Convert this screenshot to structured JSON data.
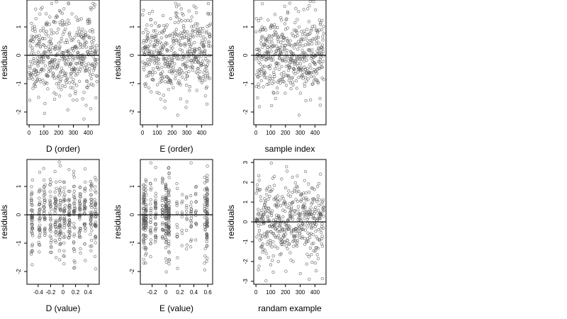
{
  "figure": {
    "background": "#ffffff",
    "point_color": "#555555",
    "zero_line_color": "#000000"
  },
  "chart_data": [
    {
      "type": "scatter",
      "xlabel": "D (order)",
      "ylabel": "residuals",
      "xlim": [
        -15,
        475
      ],
      "ylim": [
        -2.45,
        1.95
      ],
      "xticks": [
        0,
        100,
        200,
        300,
        400
      ],
      "yticks": [
        -2,
        -1,
        0,
        1
      ],
      "hline": 0,
      "x_pattern": "index",
      "x_range": [
        1,
        460
      ],
      "n": 460,
      "y_sd": 0.72,
      "seed": 11
    },
    {
      "type": "scatter",
      "xlabel": "E (order)",
      "ylabel": "residuals",
      "xlim": [
        -15,
        475
      ],
      "ylim": [
        -2.45,
        1.95
      ],
      "xticks": [
        0,
        100,
        200,
        300,
        400
      ],
      "yticks": [
        -2,
        -1,
        0,
        1
      ],
      "hline": 0,
      "x_pattern": "index",
      "x_range": [
        1,
        460
      ],
      "n": 460,
      "y_sd": 0.72,
      "seed": 23
    },
    {
      "type": "scatter",
      "xlabel": "sample index",
      "ylabel": "residuals",
      "xlim": [
        -15,
        475
      ],
      "ylim": [
        -2.45,
        1.95
      ],
      "xticks": [
        0,
        100,
        200,
        300,
        400
      ],
      "yticks": [
        -2,
        -1,
        0,
        1
      ],
      "hline": 0,
      "x_pattern": "index",
      "x_range": [
        1,
        460
      ],
      "n": 460,
      "y_sd": 0.72,
      "seed": 37
    },
    {
      "type": "scatter",
      "xlabel": "D (value)",
      "ylabel": "residuals",
      "xlim": [
        -0.58,
        0.58
      ],
      "ylim": [
        -2.45,
        1.95
      ],
      "xticks": [
        -0.4,
        -0.2,
        0.0,
        0.2,
        0.4
      ],
      "yticks": [
        -2,
        -1,
        0,
        1
      ],
      "hline": 0,
      "x_pattern": "columns",
      "x_columns": [
        -0.5,
        -0.38,
        -0.3,
        -0.2,
        -0.12,
        -0.05,
        0.02,
        0.1,
        0.18,
        0.27,
        0.35,
        0.45,
        0.52
      ],
      "x_jitter": 0.012,
      "n": 460,
      "y_sd": 0.72,
      "seed": 51
    },
    {
      "type": "scatter",
      "xlabel": "E (value)",
      "ylabel": "residuals",
      "xlim": [
        -0.37,
        0.67
      ],
      "ylim": [
        -2.45,
        1.95
      ],
      "xticks": [
        -0.2,
        0.0,
        0.2,
        0.4,
        0.6
      ],
      "yticks": [
        -2,
        -1,
        0,
        1
      ],
      "hline": 0,
      "x_pattern": "columns",
      "x_columns": [
        -0.32,
        -0.29,
        -0.22,
        -0.15,
        -0.05,
        0.0,
        0.04,
        0.16,
        0.23,
        0.3,
        0.36,
        0.43,
        0.56,
        0.59
      ],
      "x_column_weights": [
        6,
        4,
        3,
        3,
        3,
        5,
        4,
        1,
        1,
        1,
        1,
        1,
        2,
        4
      ],
      "x_jitter": 0.006,
      "n": 460,
      "y_sd": 0.72,
      "seed": 67
    },
    {
      "type": "scatter",
      "xlabel": "randam example",
      "ylabel": "residuals",
      "xlim": [
        -15,
        475
      ],
      "ylim": [
        -3.15,
        3.15
      ],
      "xticks": [
        0,
        100,
        200,
        300,
        400
      ],
      "yticks": [
        -3,
        -2,
        -1,
        0,
        1,
        2,
        3
      ],
      "hline": 0,
      "x_pattern": "index",
      "x_range": [
        1,
        460
      ],
      "n": 460,
      "y_sd": 1.0,
      "seed": 89
    }
  ]
}
